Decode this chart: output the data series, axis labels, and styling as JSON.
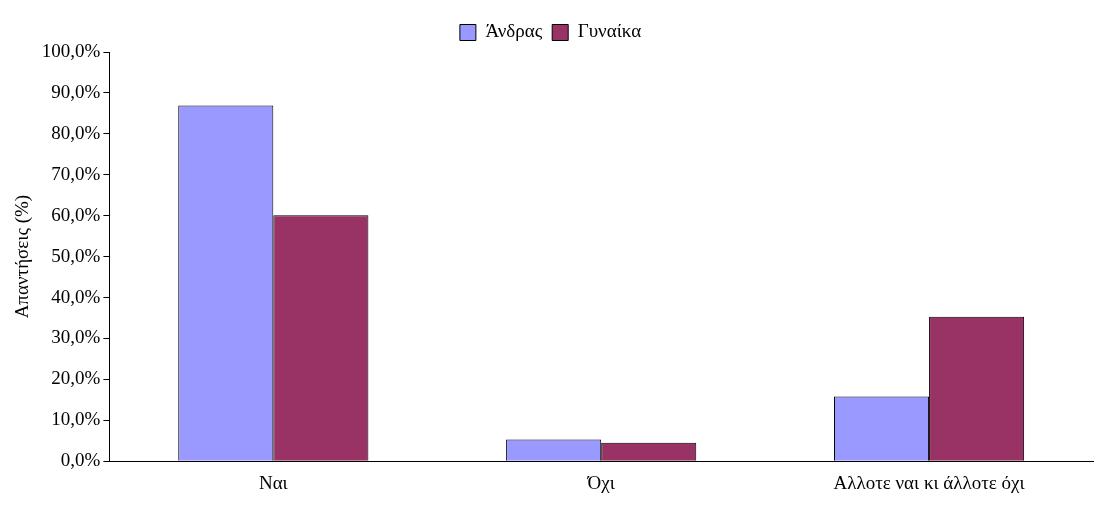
{
  "chart_data": {
    "type": "bar",
    "ylabel": "Απαντήσεις (%)",
    "categories": [
      "Ναι",
      "Όχι",
      "Αλλοτε ναι κι άλλοτε όχι"
    ],
    "series": [
      {
        "name": "Άνδρας",
        "color": "#9999ff",
        "values": [
          86.9,
          5.3,
          15.8
        ]
      },
      {
        "name": "Γυναίκα",
        "color": "#993366",
        "values": [
          60.1,
          4.5,
          35.3
        ]
      }
    ],
    "ylim": [
      0,
      100
    ],
    "yticks": [
      {
        "value": 0,
        "label": "0,0%"
      },
      {
        "value": 10,
        "label": "10,0%"
      },
      {
        "value": 20,
        "label": "20,0%"
      },
      {
        "value": 30,
        "label": "30,0%"
      },
      {
        "value": 40,
        "label": "40,0%"
      },
      {
        "value": 50,
        "label": "50,0%"
      },
      {
        "value": 60,
        "label": "60,0%"
      },
      {
        "value": 70,
        "label": "70,0%"
      },
      {
        "value": 80,
        "label": "80,0%"
      },
      {
        "value": 90,
        "label": "90,0%"
      },
      {
        "value": 100,
        "label": "100,0%"
      }
    ],
    "grid": false,
    "legend": "top"
  }
}
